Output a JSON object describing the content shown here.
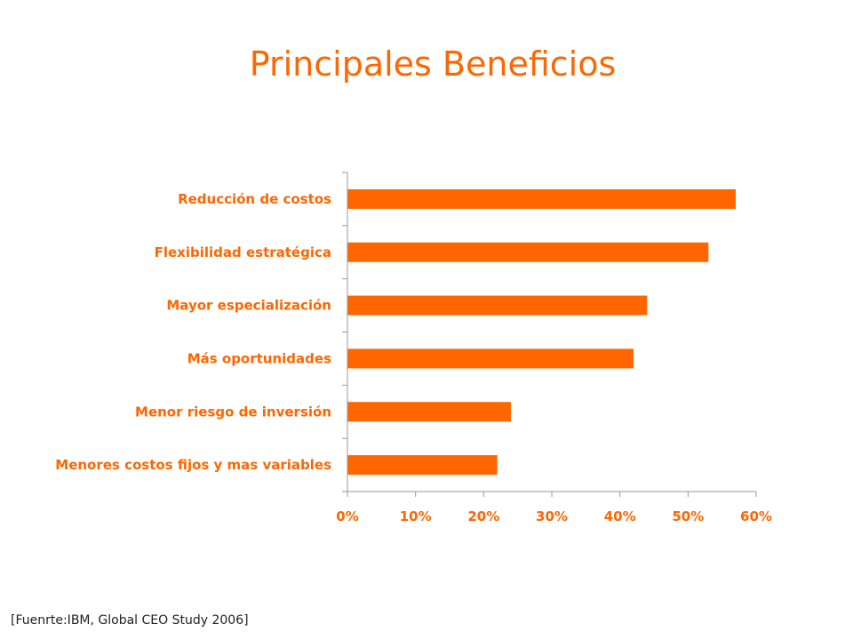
{
  "chart_data": {
    "type": "bar",
    "orientation": "horizontal",
    "title": "Principales Beneficios",
    "categories": [
      "Reducción de costos",
      "Flexibilidad estratégica",
      "Mayor especialización",
      "Más oportunidades",
      "Menor riesgo de inversión",
      "Menores costos fijos y mas variables"
    ],
    "values": [
      57,
      53,
      44,
      42,
      24,
      22
    ],
    "xlim": [
      0,
      60
    ],
    "xticks": [
      0,
      10,
      20,
      30,
      40,
      50,
      60
    ],
    "xtick_labels": [
      "0%",
      "10%",
      "20%",
      "30%",
      "40%",
      "50%",
      "60%"
    ],
    "grid": false,
    "bar_color": "#ff6600"
  },
  "source_note": "[Fuenrte:IBM, Global CEO Study 2006]"
}
